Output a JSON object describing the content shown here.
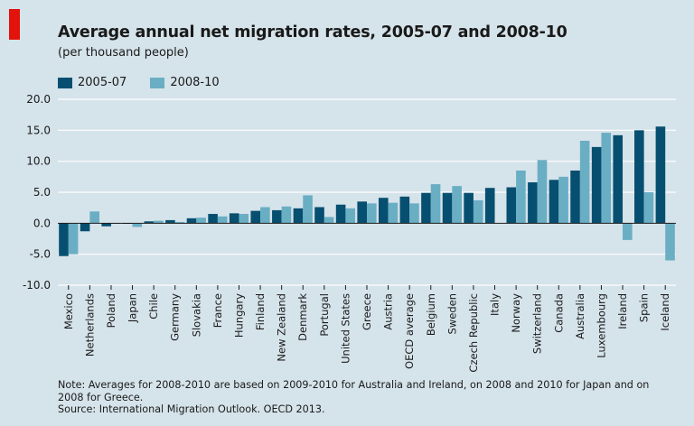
{
  "header": {
    "title": "Average annual net migration rates, 2005-07 and 2008-10",
    "subtitle": "(per thousand people)"
  },
  "colors": {
    "accent": "#e3120b",
    "series1": "#074f70",
    "series2": "#6aaec4",
    "background": "#d5e3ea"
  },
  "chart_data": {
    "type": "bar",
    "title": "Average annual net migration rates, 2005-07 and 2008-10",
    "subtitle": "(per thousand people)",
    "xlabel": "",
    "ylabel": "",
    "ylim": [
      -10,
      20
    ],
    "yticks": [
      "20.0",
      "15.0",
      "10.0",
      "5.0",
      "0.0",
      "-5.0",
      "-10.0"
    ],
    "grid": true,
    "legend_position": "top-left",
    "categories": [
      "Mexico",
      "Netherlands",
      "Poland",
      "Japan",
      "Chile",
      "Germany",
      "Slovakia",
      "France",
      "Hungary",
      "Finland",
      "New Zealand",
      "Denmark",
      "Portugal",
      "United States",
      "Greece",
      "Austria",
      "OECD average",
      "Belgium",
      "Sweden",
      "Czech Republic",
      "Italy",
      "Norway",
      "Switzerland",
      "Canada",
      "Australia",
      "Luxembourg",
      "Ireland",
      "Spain",
      "Iceland"
    ],
    "series": [
      {
        "name": "2005-07",
        "values": [
          -5.3,
          -1.3,
          -0.5,
          -0.1,
          0.3,
          0.5,
          0.8,
          1.5,
          1.6,
          2.0,
          2.1,
          2.4,
          2.6,
          3.0,
          3.5,
          4.1,
          4.3,
          4.9,
          4.9,
          4.9,
          5.7,
          5.8,
          6.6,
          7.0,
          8.5,
          12.3,
          14.2,
          15.0,
          15.6
        ]
      },
      {
        "name": "2008-10",
        "values": [
          -5.0,
          1.9,
          -0.1,
          -0.6,
          0.4,
          0.2,
          0.9,
          1.1,
          1.5,
          2.6,
          2.7,
          4.5,
          1.0,
          2.4,
          3.2,
          3.3,
          3.2,
          6.3,
          6.0,
          3.7,
          null,
          8.5,
          10.2,
          7.5,
          13.3,
          14.6,
          -2.7,
          5.0,
          -6.0
        ]
      }
    ]
  },
  "footer": {
    "note_line1": "Note: Averages for 2008-2010 are based on 2009-2010 for Australia and Ireland, on 2008 and 2010 for Japan and on",
    "note_line2": "2008 for Greece.",
    "source": "Source: International Migration Outlook. OECD 2013."
  }
}
